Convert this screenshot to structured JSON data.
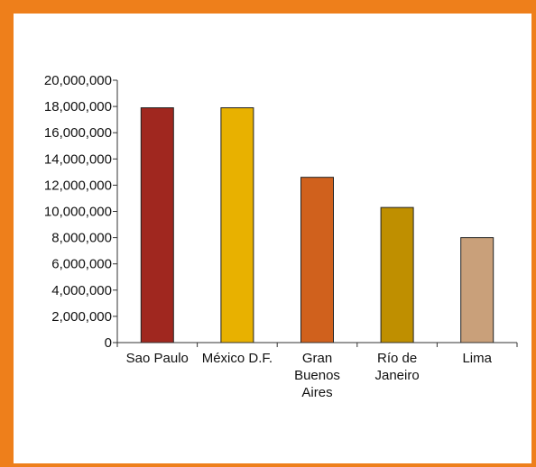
{
  "chart_data": {
    "type": "bar",
    "categories": [
      [
        "Sao Paulo"
      ],
      [
        "México D.F."
      ],
      [
        "Gran",
        "Buenos",
        "Aires"
      ],
      [
        "Río de",
        "Janeiro"
      ],
      [
        "Lima"
      ]
    ],
    "values": [
      17900000,
      17900000,
      12600000,
      10300000,
      8000000
    ],
    "bar_colors": [
      "#a0271f",
      "#e8b100",
      "#d0611d",
      "#bf8f00",
      "#c9a07a"
    ],
    "y_ticks": [
      "20,000,000",
      "18,000,000",
      "16,000,000",
      "14,000,000",
      "12,000,000",
      "10,000,000",
      "8,000,000",
      "6,000,000",
      "4,000,000",
      "2,000,000",
      "0"
    ],
    "ylim": [
      0,
      20000000
    ],
    "grid": false,
    "legend": "none"
  },
  "colors": {
    "frame": "#ee7f1b",
    "axis": "#333333"
  }
}
